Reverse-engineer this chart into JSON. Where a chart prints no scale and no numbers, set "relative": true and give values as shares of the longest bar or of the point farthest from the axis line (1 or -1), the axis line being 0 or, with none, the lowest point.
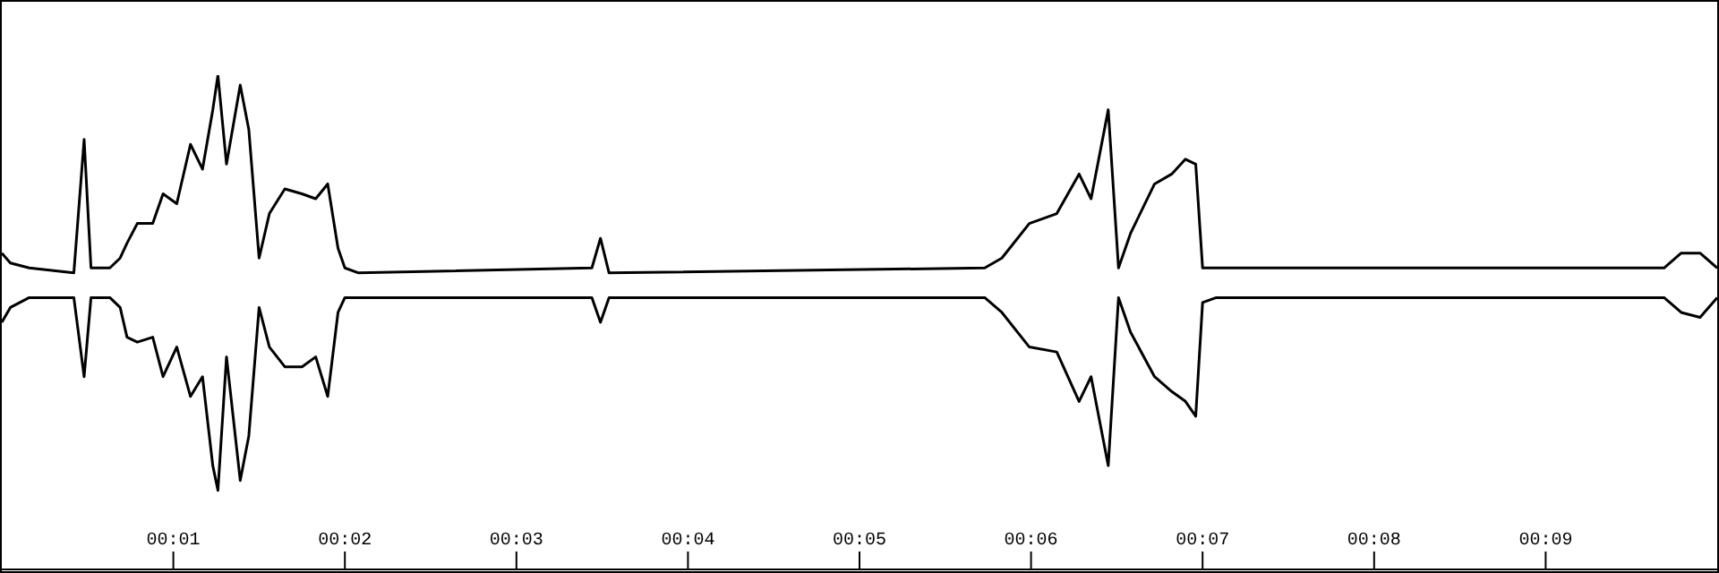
{
  "chart_data": {
    "type": "line",
    "relative": true,
    "x": [
      0,
      0.05,
      0.16,
      0.42,
      0.48,
      0.52,
      0.63,
      0.69,
      0.73,
      0.79,
      0.88,
      0.94,
      1.02,
      1.1,
      1.17,
      1.23,
      1.26,
      1.31,
      1.39,
      1.44,
      1.5,
      1.56,
      1.65,
      1.75,
      1.83,
      1.9,
      1.96,
      2,
      2.08,
      3.44,
      3.49,
      3.54,
      5.73,
      5.83,
      5.99,
      6.15,
      6.28,
      6.35,
      6.45,
      6.51,
      6.58,
      6.72,
      6.82,
      6.9,
      6.96,
      7,
      7.08,
      9.69,
      9.79,
      9.9,
      10
    ],
    "series": [
      {
        "color": "#000000",
        "values": [
          0.64,
          0.62,
          0.61,
          0.6,
          0.87,
          0.61,
          0.61,
          0.63,
          0.66,
          0.7,
          0.7,
          0.76,
          0.74,
          0.86,
          0.81,
          0.93,
          1,
          0.82,
          0.98,
          0.89,
          0.63,
          0.72,
          0.77,
          0.76,
          0.75,
          0.78,
          0.65,
          0.61,
          0.6,
          0.61,
          0.67,
          0.6,
          0.61,
          0.63,
          0.7,
          0.72,
          0.8,
          0.75,
          0.93,
          0.61,
          0.68,
          0.78,
          0.8,
          0.83,
          0.82,
          0.61,
          0.61,
          0.61,
          0.64,
          0.64,
          0.61
        ]
      },
      {
        "color": "#000000",
        "values": [
          0.5,
          0.53,
          0.55,
          0.55,
          0.39,
          0.55,
          0.55,
          0.53,
          0.47,
          0.46,
          0.47,
          0.39,
          0.45,
          0.35,
          0.39,
          0.21,
          0.16,
          0.43,
          0.18,
          0.27,
          0.53,
          0.45,
          0.41,
          0.41,
          0.43,
          0.35,
          0.52,
          0.55,
          0.55,
          0.55,
          0.5,
          0.55,
          0.55,
          0.52,
          0.45,
          0.44,
          0.34,
          0.39,
          0.21,
          0.55,
          0.48,
          0.39,
          0.36,
          0.34,
          0.31,
          0.54,
          0.55,
          0.55,
          0.52,
          0.51,
          0.55
        ]
      }
    ],
    "xlim": [
      0,
      10
    ],
    "xticks": [
      {
        "value": 1,
        "label": "00:01"
      },
      {
        "value": 2,
        "label": "00:02"
      },
      {
        "value": 3,
        "label": "00:03"
      },
      {
        "value": 4,
        "label": "00:04"
      },
      {
        "value": 5,
        "label": "00:05"
      },
      {
        "value": 6,
        "label": "00:06"
      },
      {
        "value": 7,
        "label": "00:07"
      },
      {
        "value": 8,
        "label": "00:08"
      },
      {
        "value": 9,
        "label": "00:09"
      }
    ]
  }
}
